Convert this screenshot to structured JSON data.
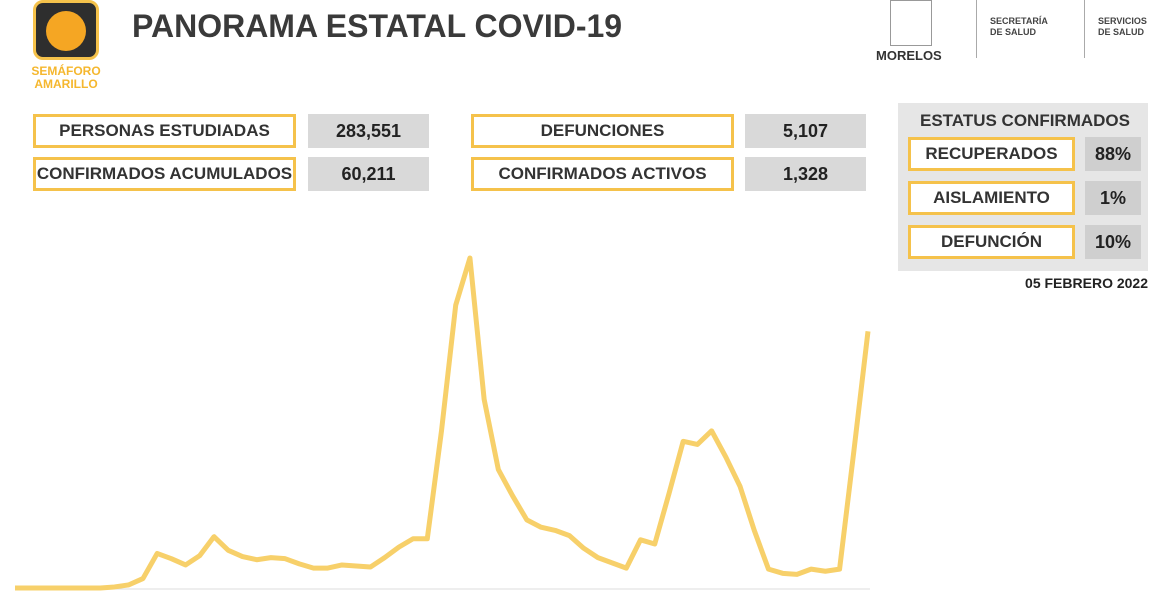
{
  "header": {
    "semaforo": "SEMÁFORO",
    "semaforo_color": "AMARILLO",
    "title": "PANORAMA ESTATAL COVID-19",
    "logos": [
      "MORELOS",
      "SECRETARÍA",
      "DE SALUD",
      "SERVICIOS",
      "DE SALUD"
    ]
  },
  "stats": [
    {
      "label": "PERSONAS ESTUDIADAS",
      "value": "283,551"
    },
    {
      "label": "CONFIRMADOS ACUMULADOS",
      "value": "60,211"
    },
    {
      "label": "DEFUNCIONES",
      "value": "5,107"
    },
    {
      "label": "CONFIRMADOS ACTIVOS",
      "value": "1,328"
    }
  ],
  "status": {
    "title": "ESTATUS CONFIRMADOS",
    "items": [
      {
        "label": "RECUPERADOS",
        "value": "88%"
      },
      {
        "label": "AISLAMIENTO",
        "value": "1%"
      },
      {
        "label": "DEFUNCIÓN",
        "value": "10%"
      }
    ]
  },
  "date": "05 FEBRERO 2022",
  "chart_data": {
    "type": "line",
    "color": "#f7d06a",
    "values": [
      0,
      0,
      0,
      0,
      0,
      0,
      0,
      1,
      3,
      9,
      33,
      28,
      22,
      31,
      49,
      36,
      30,
      27,
      29,
      28,
      23,
      19,
      19,
      22,
      21,
      20,
      29,
      39,
      47,
      47,
      150,
      270,
      315,
      180,
      113,
      88,
      65,
      58,
      55,
      50,
      38,
      29,
      24,
      19,
      46,
      42,
      90,
      140,
      137,
      150,
      125,
      97,
      55,
      18,
      14,
      13,
      18,
      16,
      18,
      130,
      245
    ]
  }
}
